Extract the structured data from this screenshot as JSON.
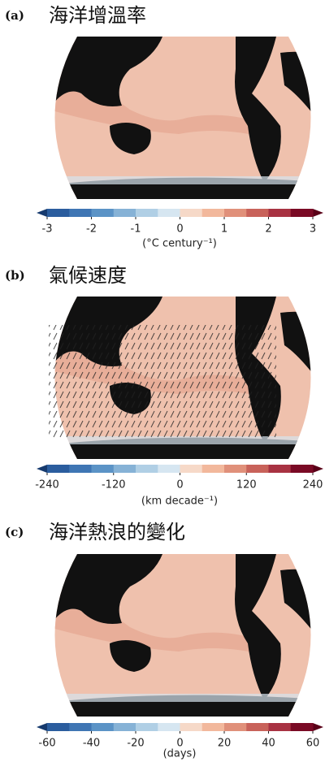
{
  "colormap": [
    "#163a6e",
    "#2b5d9e",
    "#3f76b4",
    "#5b93c6",
    "#86b2d6",
    "#b0cfe5",
    "#d6e6f1",
    "#f6d9c8",
    "#f2b89c",
    "#e0907a",
    "#c8625a",
    "#a83242",
    "#7a0a25",
    "#5a0018"
  ],
  "panels": [
    {
      "label": "(a)",
      "title": "海洋增溫率",
      "colorbar": {
        "lim": [
          -3,
          3
        ],
        "ticks": [
          -3,
          -2,
          -1,
          0,
          1,
          2,
          3
        ],
        "label": "(°C century⁻¹)"
      }
    },
    {
      "label": "(b)",
      "title": "氣候速度",
      "colorbar": {
        "lim": [
          -240,
          240
        ],
        "ticks": [
          -240,
          -120,
          0,
          120,
          240
        ],
        "label": "(km decade⁻¹)"
      }
    },
    {
      "label": "(c)",
      "title": "海洋熱浪的變化",
      "colorbar": {
        "lim": [
          -60,
          60
        ],
        "ticks": [
          -60,
          -40,
          -20,
          0,
          20,
          40,
          60
        ],
        "label": "(days)"
      }
    }
  ]
}
